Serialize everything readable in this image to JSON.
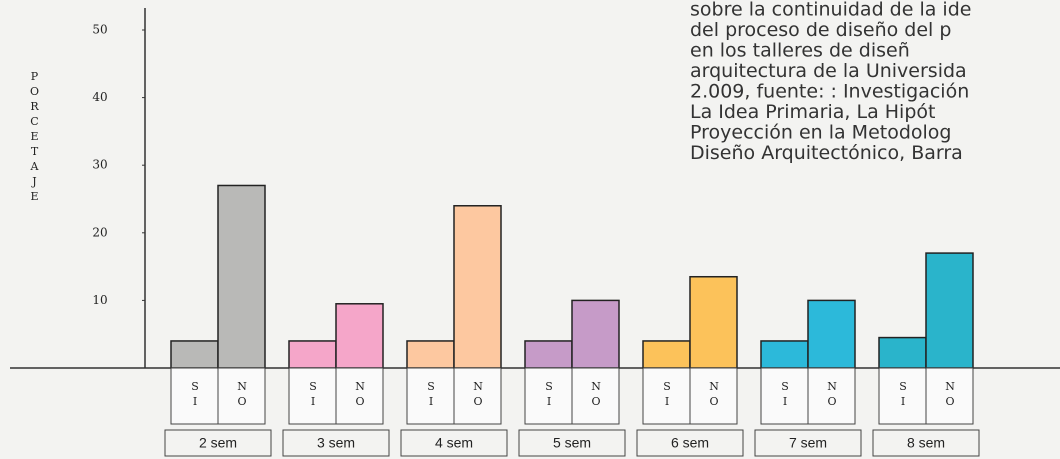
{
  "chart_data": {
    "type": "bar",
    "ylabel": "PORCETAJE",
    "categories": [
      "2 sem",
      "3 sem",
      "4 sem",
      "5 sem",
      "6 sem",
      "7 sem",
      "8 sem"
    ],
    "colors": [
      "#b9b9b7",
      "#f5a6c9",
      "#fdc8a0",
      "#c69bc8",
      "#fcc25a",
      "#2cb9da",
      "#2ab4cb"
    ],
    "series": [
      {
        "name": "SI",
        "values": [
          4,
          4,
          4,
          4,
          4,
          4,
          4.5
        ]
      },
      {
        "name": "NO",
        "values": [
          27,
          9.5,
          24,
          10,
          13.5,
          10,
          17
        ]
      }
    ],
    "ylim": [
      0,
      50
    ],
    "yticks": [
      10,
      20,
      30,
      40,
      50
    ],
    "annotation": [
      "sobre la continuidad de la ide",
      "del proceso de diseño del p",
      "en los talleres de diseñ",
      "arquitectura de la Universida",
      "2.009, fuente: : Investigación",
      "La Idea Primaria, La Hipót",
      "Proyección en la Metodolog",
      "Diseño Arquitectónico, Barra"
    ]
  }
}
